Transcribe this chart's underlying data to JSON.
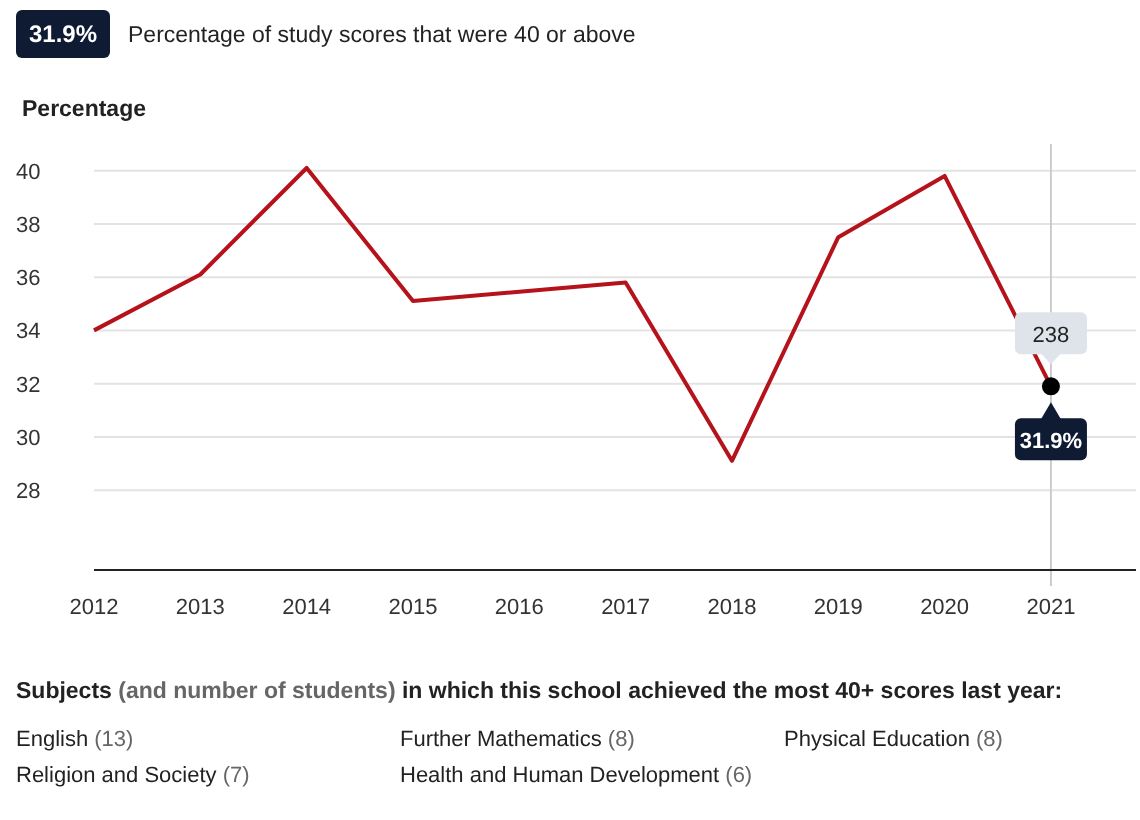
{
  "chart_data": {
    "type": "line",
    "title": "Percentage of study scores that were 40 or above",
    "ylabel": "Percentage",
    "x": [
      2012,
      2013,
      2014,
      2015,
      2016,
      2017,
      2018,
      2019,
      2020,
      2021
    ],
    "series": [
      {
        "color": "#b5121b",
        "values": [
          34.0,
          36.1,
          40.1,
          35.1,
          35.45,
          35.8,
          29.1,
          37.5,
          39.8,
          31.9
        ]
      },
      {
        "type": "scatter",
        "x": [
          2021
        ],
        "color": "#000000",
        "values": [
          31.9
        ]
      }
    ],
    "xlim": [
      2012,
      2021.8
    ],
    "xticks": [
      2012,
      2013,
      2014,
      2015,
      2016,
      2017,
      2018,
      2019,
      2020,
      2021
    ],
    "ylim": [
      25,
      41
    ],
    "yticks": [
      28,
      30,
      32,
      34,
      36,
      38,
      40
    ],
    "grid": "y",
    "line_style": "solid",
    "ref_lines": [
      {
        "axis": "x",
        "value": 2021,
        "color": "#cccccc"
      }
    ],
    "annotations": [
      "31.9%",
      "Subjects (and number of students) in which this school achieved the most 40+ scores last year:",
      "English (13)",
      "Further Mathematics (8)",
      "Physical Education (8)",
      "Religion and Society (7)",
      "Health and Human Development (6)",
      {
        "text": "238",
        "x": 2021,
        "y": 31.9
      },
      {
        "text": "31.9%",
        "x": 2021,
        "y": 31.9
      }
    ]
  }
}
